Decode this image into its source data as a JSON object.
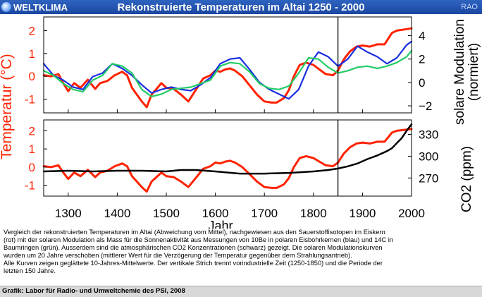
{
  "header": {
    "logo_text": "WELTKLIMA",
    "title": "Rekonstruierte Temperaturen im Altai 1250 - 2000",
    "badge": "RAO"
  },
  "caption": {
    "line1": "Vergleich der rekonstruierten Temperaturen im Altai (Abweichung vom Mittel), nachgewiesen aus den Sauerstoffisotopen im Eiskern",
    "line2": "(rot) mit der solaren Modulation als Mass für die Sonnenaktivität aus Messungen von 10Be in polaren Eisbohrkernen (blau) und 14C in",
    "line3": "Baumringen (grün). Ausserdem sind die atmosphärischen CO2 Konzentrationen (schwarz) gezeigt. Die solaren Modulationskurven",
    "line4": "wurden um 20 Jahre verschoben (mittlerer Wert für die Verzögerung der Temperatur gegenüber dem Strahlungsantrieb).",
    "line5": "Alle Kurven zeigen geglättete 10-Jahres-Mittelwerte. Der vertikale Strich trennt vorindustrielle Zeit (1250-1850) und die Periode der",
    "line6": "letzten 150 Jahre."
  },
  "footer": {
    "text": "Grafik: Labor für Radio- und Umweltchemie des PSI, 2008"
  },
  "colors": {
    "header_bg": "#1f4fae",
    "temperature": "#ff2200",
    "solar_10be": "#1a2fe0",
    "solar_14c": "#22cc66",
    "co2": "#000000",
    "divider": "#000000"
  },
  "chart_data": [
    {
      "type": "line",
      "panel": "top",
      "xlabel": "Jahr",
      "xlim": [
        1250,
        2000
      ],
      "x_ticks": [
        1300,
        1400,
        1500,
        1600,
        1700,
        1800,
        1900,
        2000
      ],
      "left_axis": {
        "label": "Temperatur (°C)",
        "ylim": [
          -1.6,
          2.6
        ],
        "ticks": [
          -1,
          0,
          1,
          2
        ]
      },
      "right_axis": {
        "label_line1": "solare Modulation",
        "label_line2": "(normiert)",
        "ylim": [
          -2.6,
          5.6
        ],
        "ticks": [
          -2,
          0,
          2,
          4
        ]
      },
      "vertical_line_x": 1850,
      "series": [
        {
          "axis": "left",
          "color": "#ff2200",
          "x": [
            1250,
            1265,
            1280,
            1290,
            1300,
            1312,
            1325,
            1340,
            1355,
            1365,
            1380,
            1395,
            1410,
            1420,
            1430,
            1440,
            1450,
            1460,
            1470,
            1480,
            1490,
            1500,
            1515,
            1530,
            1545,
            1560,
            1575,
            1590,
            1600,
            1610,
            1620,
            1630,
            1640,
            1655,
            1670,
            1685,
            1700,
            1715,
            1725,
            1740,
            1750,
            1760,
            1772,
            1785,
            1800,
            1812,
            1825,
            1840,
            1850,
            1862,
            1875,
            1888,
            1900,
            1915,
            1930,
            1945,
            1960,
            1970,
            1985,
            2000
          ],
          "y": [
            0.05,
            0.0,
            0.1,
            -0.3,
            -0.65,
            -0.3,
            -0.5,
            -0.15,
            -0.55,
            -0.3,
            -0.2,
            0.05,
            0.2,
            0.05,
            -0.5,
            -0.8,
            -1.1,
            -1.35,
            -0.8,
            -0.55,
            -0.3,
            -0.5,
            -0.55,
            -0.8,
            -1.1,
            -0.6,
            -0.1,
            0.05,
            0.25,
            0.2,
            0.3,
            0.35,
            0.25,
            0.0,
            -0.4,
            -0.8,
            -1.1,
            -1.15,
            -1.15,
            -0.95,
            -0.6,
            0.0,
            0.5,
            0.6,
            0.5,
            0.3,
            0.1,
            0.05,
            0.25,
            0.75,
            1.1,
            1.3,
            1.35,
            1.3,
            1.4,
            1.4,
            1.9,
            2.0,
            2.05,
            2.1
          ]
        },
        {
          "axis": "right",
          "color": "#1a2fe0",
          "x": [
            1250,
            1270,
            1290,
            1310,
            1330,
            1350,
            1370,
            1390,
            1410,
            1430,
            1450,
            1470,
            1490,
            1510,
            1530,
            1550,
            1570,
            1590,
            1610,
            1630,
            1650,
            1670,
            1690,
            1710,
            1730,
            1750,
            1770,
            1790,
            1810,
            1830,
            1850,
            1870,
            1890,
            1910,
            1930,
            1950,
            1970,
            1990,
            2000
          ],
          "y": [
            1.6,
            0.6,
            0.2,
            -0.4,
            -0.6,
            0.5,
            0.8,
            1.6,
            1.2,
            0.6,
            -0.2,
            -0.9,
            -0.6,
            -0.4,
            -0.6,
            -0.7,
            -0.2,
            0.4,
            1.6,
            2.0,
            2.1,
            1.1,
            0.0,
            -0.6,
            -1.0,
            -1.4,
            -0.6,
            1.4,
            2.6,
            2.2,
            1.4,
            2.0,
            3.1,
            2.6,
            2.2,
            1.6,
            2.1,
            3.2,
            3.5
          ]
        },
        {
          "axis": "right",
          "color": "#22cc66",
          "x": [
            1250,
            1270,
            1290,
            1310,
            1330,
            1350,
            1370,
            1390,
            1410,
            1430,
            1450,
            1470,
            1490,
            1510,
            1530,
            1550,
            1570,
            1590,
            1610,
            1630,
            1650,
            1670,
            1690,
            1710,
            1730,
            1750,
            1770,
            1790,
            1810,
            1830,
            1850,
            1870,
            1890,
            1910,
            1930,
            1950,
            1970,
            1990,
            2000
          ],
          "y": [
            1.0,
            0.6,
            -0.1,
            -0.6,
            -0.8,
            0.2,
            0.6,
            1.6,
            1.4,
            0.8,
            -0.6,
            -1.2,
            -1.0,
            -0.6,
            -0.5,
            -0.4,
            -0.1,
            0.2,
            1.4,
            1.7,
            1.6,
            0.9,
            -0.1,
            -0.5,
            -0.6,
            -0.3,
            0.8,
            2.1,
            2.0,
            1.3,
            0.8,
            1.0,
            1.3,
            1.4,
            1.2,
            1.4,
            1.7,
            2.2,
            2.7
          ]
        }
      ]
    },
    {
      "type": "line",
      "panel": "bottom",
      "xlabel": "Jahr",
      "xlim": [
        1250,
        2000
      ],
      "x_ticks": [
        1300,
        1400,
        1500,
        1600,
        1700,
        1800,
        1900,
        2000
      ],
      "left_axis": {
        "label": "Temperatur (°C)",
        "ylim": [
          -1.6,
          2.6
        ],
        "ticks": [
          -1,
          0,
          1,
          2
        ]
      },
      "right_axis": {
        "label": "CO2 (ppm)",
        "ylim": [
          245,
          350
        ],
        "ticks": [
          270,
          300,
          330
        ]
      },
      "vertical_line_x": 1850,
      "series": [
        {
          "axis": "left",
          "color": "#ff2200",
          "x": [
            1250,
            1265,
            1280,
            1290,
            1300,
            1312,
            1325,
            1340,
            1355,
            1365,
            1380,
            1395,
            1410,
            1420,
            1430,
            1440,
            1450,
            1460,
            1470,
            1480,
            1490,
            1500,
            1515,
            1530,
            1545,
            1560,
            1575,
            1590,
            1600,
            1610,
            1620,
            1630,
            1640,
            1655,
            1670,
            1685,
            1700,
            1715,
            1725,
            1740,
            1750,
            1760,
            1772,
            1785,
            1800,
            1812,
            1825,
            1840,
            1850,
            1862,
            1875,
            1888,
            1900,
            1915,
            1930,
            1945,
            1960,
            1970,
            1985,
            2000
          ],
          "y": [
            0.05,
            0.0,
            0.1,
            -0.3,
            -0.65,
            -0.3,
            -0.5,
            -0.15,
            -0.55,
            -0.3,
            -0.2,
            0.05,
            0.2,
            0.05,
            -0.5,
            -0.8,
            -1.1,
            -1.35,
            -0.8,
            -0.55,
            -0.3,
            -0.5,
            -0.55,
            -0.8,
            -1.1,
            -0.6,
            -0.1,
            0.05,
            0.25,
            0.2,
            0.3,
            0.35,
            0.25,
            0.0,
            -0.4,
            -0.8,
            -1.1,
            -1.15,
            -1.15,
            -0.95,
            -0.6,
            0.0,
            0.5,
            0.6,
            0.5,
            0.3,
            0.1,
            0.05,
            0.25,
            0.75,
            1.1,
            1.3,
            1.35,
            1.3,
            1.4,
            1.4,
            1.9,
            2.0,
            2.05,
            2.1
          ]
        },
        {
          "axis": "right",
          "color": "#000000",
          "x": [
            1250,
            1300,
            1350,
            1400,
            1450,
            1500,
            1530,
            1560,
            1600,
            1650,
            1700,
            1750,
            1800,
            1830,
            1850,
            1870,
            1890,
            1910,
            1930,
            1950,
            1960,
            1970,
            1980,
            1990,
            2000
          ],
          "y": [
            279,
            280,
            279,
            280,
            280,
            279,
            281,
            281,
            279,
            276,
            276,
            277,
            279,
            281,
            283,
            286,
            290,
            296,
            301,
            307,
            311,
            318,
            325,
            335,
            344
          ]
        }
      ]
    }
  ]
}
